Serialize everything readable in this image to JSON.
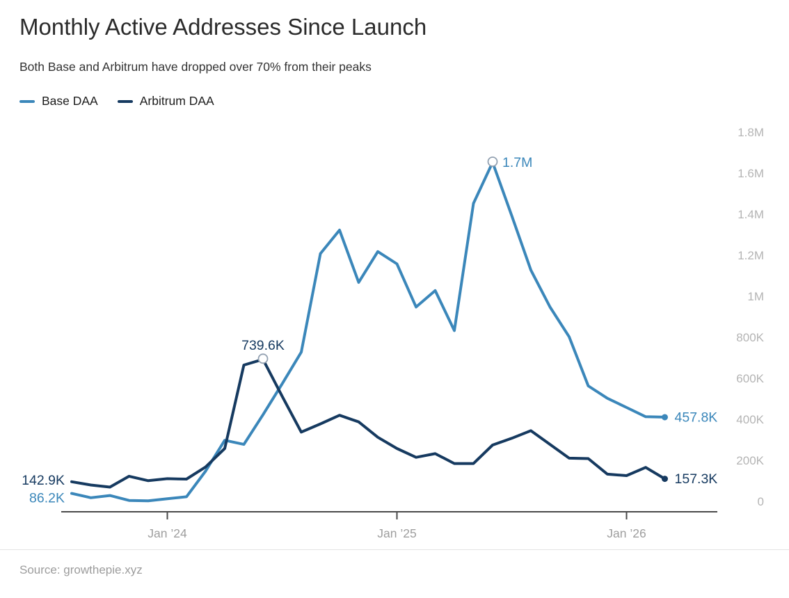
{
  "header": {
    "title": "Monthly Active Addresses Since Launch",
    "subtitle": "Both Base and Arbitrum have dropped over 70% from their peaks"
  },
  "legend": [
    {
      "label": "Base DAA",
      "color": "#3b87ba"
    },
    {
      "label": "Arbitrum DAA",
      "color": "#163a60"
    }
  ],
  "footer": {
    "source": "Source: growthepie.xyz"
  },
  "chart_data": {
    "type": "line",
    "title": "Monthly Active Addresses Since Launch",
    "subtitle": "Both Base and Arbitrum have dropped over 70% from their peaks",
    "unit": "addresses",
    "grid": "off",
    "legend_position": "top-left",
    "y_axis_side": "right",
    "ylim_thousands": [
      0,
      1800
    ],
    "categories": [
      "Aug '23",
      "Sep '23",
      "Oct '23",
      "Nov '23",
      "Dec '23",
      "Jan '24",
      "Feb '24",
      "Mar '24",
      "Apr '24",
      "May '24",
      "Jun '24",
      "Jul '24",
      "Aug '24",
      "Sep '24",
      "Oct '24",
      "Nov '24",
      "Dec '24",
      "Jan '25",
      "Feb '25",
      "Mar '25",
      "Apr '25",
      "May '25",
      "Jun '25",
      "Jul '25",
      "Aug '25",
      "Sep '25",
      "Oct '25",
      "Nov '25",
      "Dec '25",
      "Jan '26",
      "Feb '26",
      "Mar '26"
    ],
    "series": [
      {
        "name": "Base DAA",
        "color": "#3b87ba",
        "values_thousands": [
          86.2,
          65,
          76,
          52,
          50,
          60,
          70,
          195,
          345,
          325,
          470,
          620,
          775,
          1255,
          1370,
          1115,
          1265,
          1205,
          995,
          1075,
          880,
          1500,
          1700,
          1440,
          1175,
          995,
          850,
          610,
          550,
          505,
          460,
          457.8
        ]
      },
      {
        "name": "Arbitrum DAA",
        "color": "#163a60",
        "values_thousands": [
          142.9,
          127,
          117,
          170,
          148,
          158,
          156,
          215,
          305,
          712,
          739.6,
          560,
          385,
          425,
          467,
          435,
          360,
          305,
          262,
          280,
          232,
          232,
          322,
          355,
          392,
          325,
          258,
          256,
          180,
          173,
          213,
          157.3
        ]
      }
    ],
    "yticks": [
      {
        "value_thousands": 0,
        "label": "0"
      },
      {
        "value_thousands": 200,
        "label": "200K"
      },
      {
        "value_thousands": 400,
        "label": "400K"
      },
      {
        "value_thousands": 600,
        "label": "600K"
      },
      {
        "value_thousands": 800,
        "label": "800K"
      },
      {
        "value_thousands": 1000,
        "label": "1M"
      },
      {
        "value_thousands": 1200,
        "label": "1.2M"
      },
      {
        "value_thousands": 1400,
        "label": "1.4M"
      },
      {
        "value_thousands": 1600,
        "label": "1.6M"
      },
      {
        "value_thousands": 1800,
        "label": "1.8M"
      }
    ],
    "xticks": [
      {
        "index": 5,
        "label": "Jan ’24"
      },
      {
        "index": 17,
        "label": "Jan ’25"
      },
      {
        "index": 29,
        "label": "Jan ’26"
      }
    ],
    "annotations": [
      {
        "series": 1,
        "index": 0,
        "text": "142.9K",
        "placement": "left",
        "marker": "none",
        "dy": 4
      },
      {
        "series": 0,
        "index": 0,
        "text": "86.2K",
        "placement": "left",
        "marker": "none",
        "dy": 13
      },
      {
        "series": 1,
        "index": 10,
        "text": "739.6K",
        "placement": "above",
        "marker": "ring"
      },
      {
        "series": 0,
        "index": 22,
        "text": "1.7M",
        "placement": "right",
        "marker": "ring"
      },
      {
        "series": 0,
        "index": 31,
        "text": "457.8K",
        "placement": "right",
        "marker": "dot"
      },
      {
        "series": 1,
        "index": 31,
        "text": "157.3K",
        "placement": "right",
        "marker": "dot"
      }
    ]
  }
}
